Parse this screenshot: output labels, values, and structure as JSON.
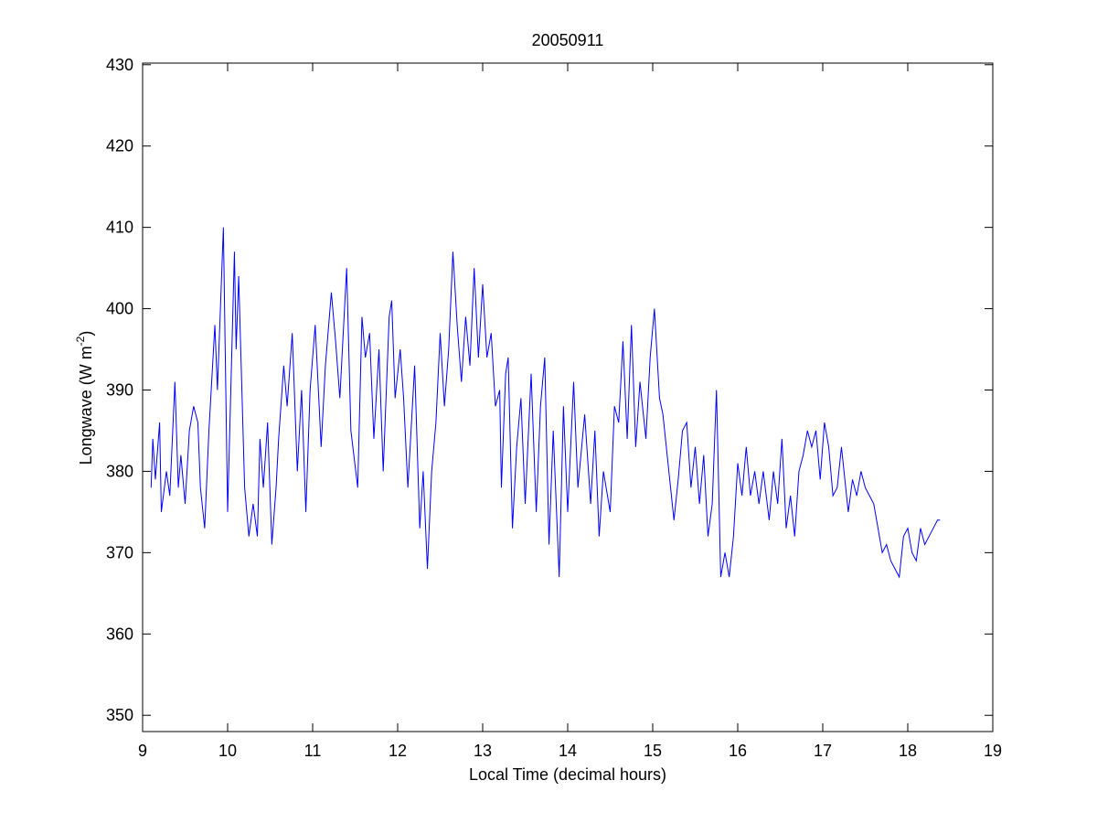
{
  "chart_data": {
    "type": "line",
    "title": "20050911",
    "xlabel": "Local Time (decimal hours)",
    "ylabel": [
      "Longwave (W m",
      "-2",
      ")"
    ],
    "xlim": [
      9,
      19
    ],
    "ylim": [
      348,
      430.2
    ],
    "xticks": [
      9,
      10,
      11,
      12,
      13,
      14,
      15,
      16,
      17,
      18,
      19
    ],
    "yticks": [
      350,
      360,
      370,
      380,
      390,
      400,
      410,
      420,
      430
    ],
    "series": [
      {
        "color": "#0000ff",
        "x": [
          9.1,
          9.12,
          9.15,
          9.2,
          9.22,
          9.28,
          9.32,
          9.38,
          9.42,
          9.45,
          9.5,
          9.55,
          9.6,
          9.65,
          9.68,
          9.73,
          9.78,
          9.85,
          9.88,
          9.95,
          10.0,
          10.08,
          10.1,
          10.13,
          10.2,
          10.25,
          10.3,
          10.35,
          10.38,
          10.42,
          10.47,
          10.52,
          10.57,
          10.6,
          10.66,
          10.7,
          10.76,
          10.82,
          10.87,
          10.92,
          10.97,
          11.03,
          11.1,
          11.15,
          11.22,
          11.27,
          11.32,
          11.4,
          11.45,
          11.53,
          11.58,
          11.62,
          11.67,
          11.72,
          11.78,
          11.83,
          11.9,
          11.93,
          11.97,
          12.03,
          12.07,
          12.12,
          12.2,
          12.26,
          12.3,
          12.35,
          12.4,
          12.45,
          12.5,
          12.55,
          12.6,
          12.65,
          12.7,
          12.75,
          12.8,
          12.85,
          12.9,
          12.95,
          13.0,
          13.05,
          13.1,
          13.15,
          13.2,
          13.22,
          13.27,
          13.3,
          13.35,
          13.4,
          13.45,
          13.5,
          13.57,
          13.63,
          13.68,
          13.73,
          13.78,
          13.83,
          13.9,
          13.95,
          14.0,
          14.07,
          14.12,
          14.2,
          14.27,
          14.32,
          14.37,
          14.42,
          14.5,
          14.55,
          14.6,
          14.65,
          14.7,
          14.75,
          14.8,
          14.85,
          14.92,
          14.97,
          15.02,
          15.08,
          15.12,
          15.18,
          15.25,
          15.3,
          15.35,
          15.4,
          15.45,
          15.5,
          15.55,
          15.6,
          15.65,
          15.7,
          15.75,
          15.8,
          15.85,
          15.9,
          15.95,
          16.0,
          16.05,
          16.1,
          16.15,
          16.2,
          16.25,
          16.3,
          16.37,
          16.42,
          16.47,
          16.52,
          16.57,
          16.62,
          16.67,
          16.72,
          16.77,
          16.82,
          16.87,
          16.92,
          16.97,
          17.02,
          17.07,
          17.12,
          17.17,
          17.22,
          17.3,
          17.35,
          17.4,
          17.45,
          17.5,
          17.55,
          17.6,
          17.65,
          17.7,
          17.75,
          17.8,
          17.85,
          17.9,
          17.95,
          18.0,
          18.05,
          18.1,
          18.15,
          18.2,
          18.25,
          18.3,
          18.35,
          18.38
        ],
        "values": [
          378,
          384,
          379,
          386,
          375,
          380,
          377,
          391,
          378,
          382,
          376,
          385,
          388,
          386,
          378,
          373,
          385,
          398,
          390,
          410,
          375,
          407,
          395,
          404,
          378,
          372,
          376,
          372,
          384,
          378,
          386,
          371,
          378,
          384,
          393,
          388,
          397,
          380,
          390,
          375,
          390,
          398,
          383,
          393,
          402,
          396,
          389,
          405,
          385,
          378,
          399,
          394,
          397,
          384,
          395,
          380,
          399,
          401,
          389,
          395,
          389,
          378,
          393,
          373,
          380,
          368,
          380,
          386,
          397,
          388,
          395,
          407,
          398,
          391,
          399,
          393,
          405,
          394,
          403,
          394,
          397,
          388,
          390,
          378,
          392,
          394,
          373,
          383,
          389,
          376,
          392,
          375,
          388,
          394,
          371,
          385,
          367,
          388,
          375,
          391,
          378,
          387,
          376,
          385,
          372,
          380,
          375,
          388,
          386,
          396,
          384,
          398,
          383,
          391,
          384,
          394,
          400,
          389,
          387,
          381,
          374,
          379,
          385,
          386,
          378,
          383,
          376,
          382,
          372,
          376,
          390,
          367,
          370,
          367,
          372,
          381,
          377,
          383,
          377,
          380,
          376,
          380,
          374,
          380,
          376,
          384,
          373,
          377,
          372,
          380,
          382,
          385,
          383,
          385,
          379,
          386,
          383,
          377,
          378,
          383,
          375,
          379,
          377,
          380,
          378,
          377,
          376,
          373,
          370,
          371,
          369,
          368,
          367,
          372,
          373,
          370,
          369,
          373,
          371,
          372,
          373,
          374,
          374
        ]
      }
    ]
  }
}
